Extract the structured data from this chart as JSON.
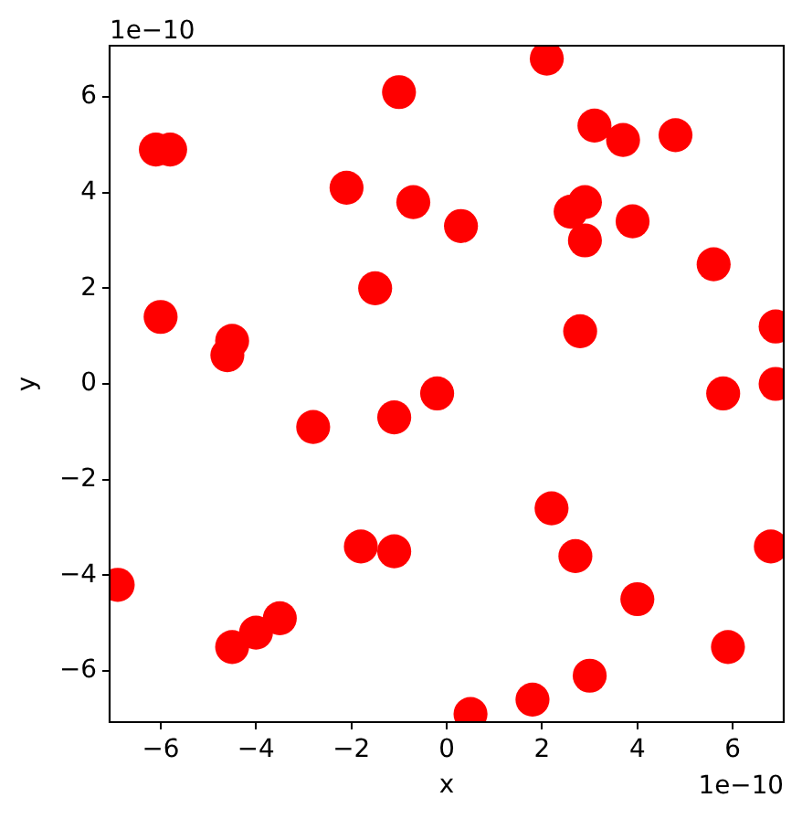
{
  "chart_data": {
    "type": "scatter",
    "xlabel": "x",
    "ylabel": "y",
    "annotations": [
      "1e−10",
      "1e−10"
    ],
    "x": [
      -1.0,
      -6.1,
      -5.8,
      -2.1,
      -0.7,
      0.3,
      -1.5,
      -6.0,
      -4.5,
      -4.6,
      -0.2,
      -1.1,
      -2.8,
      2.1,
      3.1,
      3.7,
      4.8,
      2.9,
      2.6,
      2.9,
      3.9,
      5.6,
      2.8,
      6.9,
      5.8,
      6.9,
      2.2,
      2.7,
      6.8,
      4.0,
      5.9,
      3.0,
      1.8,
      0.5,
      -6.9,
      -1.8,
      -1.1,
      -3.5,
      -4.0,
      -4.5
    ],
    "values": [
      6.1,
      4.9,
      4.9,
      4.1,
      3.8,
      3.3,
      2.0,
      1.4,
      0.9,
      0.6,
      -0.2,
      -0.7,
      -0.9,
      6.8,
      5.4,
      5.1,
      5.2,
      3.8,
      3.6,
      3.0,
      3.4,
      2.5,
      1.1,
      1.2,
      -0.2,
      0.0,
      -2.6,
      -3.6,
      -3.4,
      -4.5,
      -5.5,
      -6.1,
      -6.6,
      -6.9,
      -4.2,
      -3.4,
      -3.5,
      -4.9,
      -5.2,
      -5.5
    ],
    "color": "#ff0000",
    "marker": "circle",
    "xlim": [
      -7.07,
      7.07
    ],
    "xticks": [
      {
        "value": -6,
        "label": "−6"
      },
      {
        "value": -4,
        "label": "−4"
      },
      {
        "value": -2,
        "label": "−2"
      },
      0,
      2,
      4,
      6
    ],
    "ylim": [
      -7.07,
      7.07
    ],
    "yticks": [
      {
        "value": -6,
        "label": "−6"
      },
      {
        "value": -4,
        "label": "−4"
      },
      {
        "value": -2,
        "label": "−2"
      },
      0,
      2,
      4,
      6
    ],
    "grid": false,
    "legend": false
  }
}
